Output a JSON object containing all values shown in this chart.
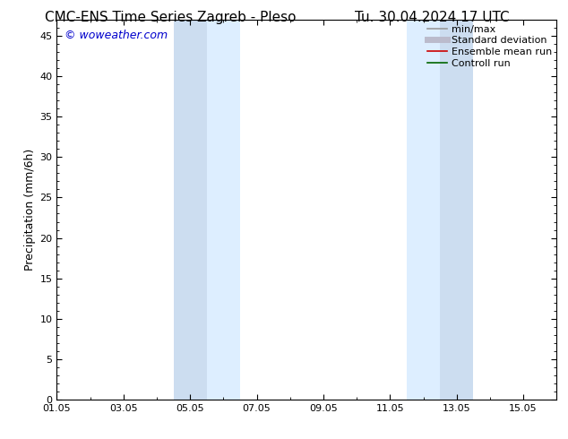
{
  "title": "CMC-ENS Time Series Zagreb - Pleso",
  "title_right": "Tu. 30.04.2024 17 UTC",
  "ylabel": "Precipitation (mm/6h)",
  "watermark": "© woweather.com",
  "watermark_color": "#0000cc",
  "background_color": "#ffffff",
  "plot_bg_color": "#ffffff",
  "ylim": [
    0,
    47
  ],
  "yticks": [
    0,
    5,
    10,
    15,
    20,
    25,
    30,
    35,
    40,
    45
  ],
  "xlim": [
    0,
    15
  ],
  "x_tick_labels": [
    "01.05",
    "03.05",
    "05.05",
    "07.05",
    "09.05",
    "11.05",
    "13.05",
    "15.05"
  ],
  "x_tick_positions": [
    0,
    2,
    4,
    6,
    8,
    10,
    12,
    14
  ],
  "shaded_bands": [
    {
      "x_start": 3.5,
      "x_end": 4.5,
      "color": "#ccddf0"
    },
    {
      "x_start": 4.5,
      "x_end": 5.5,
      "color": "#ddeeff"
    },
    {
      "x_start": 10.5,
      "x_end": 11.5,
      "color": "#ddeeff"
    },
    {
      "x_start": 11.5,
      "x_end": 12.5,
      "color": "#ccddf0"
    }
  ],
  "legend_entries": [
    {
      "label": "min/max",
      "color": "#999999",
      "lw": 1.2,
      "style": "solid"
    },
    {
      "label": "Standard deviation",
      "color": "#bbbbcc",
      "lw": 5,
      "style": "solid"
    },
    {
      "label": "Ensemble mean run",
      "color": "#cc0000",
      "lw": 1.2,
      "style": "solid"
    },
    {
      "label": "Controll run",
      "color": "#006600",
      "lw": 1.2,
      "style": "solid"
    }
  ],
  "title_fontsize": 11,
  "tick_fontsize": 8,
  "ylabel_fontsize": 9,
  "watermark_fontsize": 9,
  "legend_fontsize": 8
}
